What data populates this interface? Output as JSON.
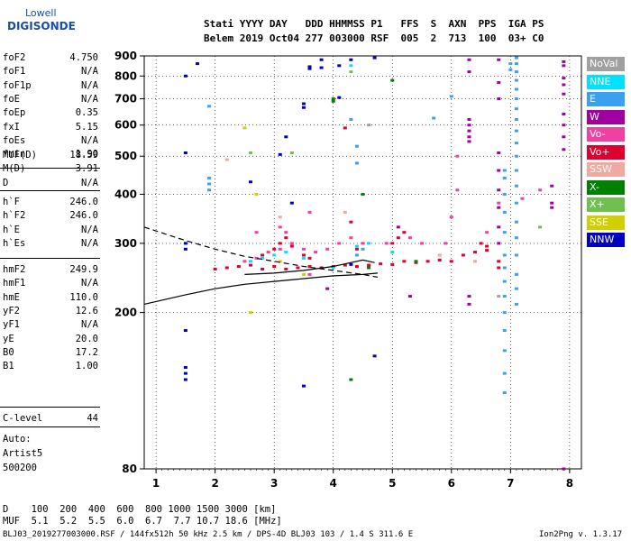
{
  "logo": {
    "top": "Lowell",
    "bottom": "DIGISONDE"
  },
  "header": {
    "line1": "Stati YYYY DAY   DDD HHMMSS P1   FFS  S  AXN  PPS  IGA PS",
    "line2": "Belem 2019 Oct04 277 003000 RSF  005  2  713  100  03+ C0"
  },
  "params_group1": [
    {
      "label": "foF2",
      "value": "4.750"
    },
    {
      "label": "foF1",
      "value": "N/A"
    },
    {
      "label": "foF1p",
      "value": "N/A"
    },
    {
      "label": "foE",
      "value": "N/A"
    },
    {
      "label": "foEp",
      "value": "0.35"
    },
    {
      "label": "fxI",
      "value": "5.15"
    },
    {
      "label": "foEs",
      "value": "N/A"
    },
    {
      "label": "fmin",
      "value": "1.90"
    }
  ],
  "params_group2": [
    {
      "label": "MUF(D)",
      "value": "18.59"
    },
    {
      "label": "M(D)",
      "value": "3.91"
    },
    {
      "label": "D",
      "value": "N/A"
    }
  ],
  "params_group3": [
    {
      "label": "h`F",
      "value": "246.0"
    },
    {
      "label": "h`F2",
      "value": "246.0"
    },
    {
      "label": "h`E",
      "value": "N/A"
    },
    {
      "label": "h`Es",
      "value": "N/A"
    }
  ],
  "params_group4": [
    {
      "label": "hmF2",
      "value": "249.9"
    },
    {
      "label": "hmF1",
      "value": "N/A"
    },
    {
      "label": "hmE",
      "value": "110.0"
    },
    {
      "label": "yF2",
      "value": "12.6"
    },
    {
      "label": "yF1",
      "value": "N/A"
    },
    {
      "label": "yE",
      "value": "20.0"
    },
    {
      "label": "B0",
      "value": "17.2"
    },
    {
      "label": "B1",
      "value": "1.00"
    }
  ],
  "clevel": {
    "label": "C-level",
    "value": "44"
  },
  "auto": [
    "Auto:",
    "Artist5",
    "500200"
  ],
  "footer": {
    "d_row": "D    100  200  400  600  800 1000 1500 3000 [km]",
    "muf_row": "MUF  5.1  5.2  5.5  6.0  6.7  7.7 10.7 18.6 [MHz]",
    "file_info": "BLJ03_2019277003000.RSF / 144fx512h 50 kHz 2.5 km / DPS-4D BLJ03 103 / 1.4 S 311.6 E",
    "version": "Ion2Png v. 1.3.17"
  },
  "legend": [
    {
      "label": "NoVal",
      "color": "#a0a0a0"
    },
    {
      "label": "NNE",
      "color": "#00e0ff"
    },
    {
      "label": "E",
      "color": "#3aa0f0"
    },
    {
      "label": "W",
      "color": "#a000a0"
    },
    {
      "label": "Vo-",
      "color": "#f040a0"
    },
    {
      "label": "Vo+",
      "color": "#e00030"
    },
    {
      "label": "SSW",
      "color": "#f0a8a0"
    },
    {
      "label": "X-",
      "color": "#008000"
    },
    {
      "label": "X+",
      "color": "#70c050"
    },
    {
      "label": "SSE",
      "color": "#d0d000"
    },
    {
      "label": "NNW",
      "color": "#0000c0"
    }
  ],
  "chart_data": {
    "type": "scatter",
    "title": "",
    "xlabel": "",
    "ylabel": "",
    "xlim": [
      0.8,
      8.2
    ],
    "ylim": [
      80,
      900
    ],
    "yscale": "log",
    "xticks": [
      1,
      2,
      3,
      4,
      5,
      6,
      7,
      8
    ],
    "yticks": [
      80,
      200,
      300,
      400,
      500,
      600,
      700,
      800,
      900
    ],
    "grid": true,
    "series": [
      {
        "name": "NNW",
        "color": "#0000c0",
        "points": [
          [
            1.7,
            860
          ],
          [
            1.5,
            800
          ],
          [
            1.5,
            510
          ],
          [
            1.5,
            300
          ],
          [
            1.5,
            290
          ],
          [
            1.5,
            180
          ],
          [
            1.5,
            145
          ],
          [
            1.5,
            140
          ],
          [
            1.5,
            135
          ],
          [
            2.6,
            430
          ],
          [
            3.1,
            505
          ],
          [
            3.2,
            560
          ],
          [
            3.3,
            380
          ],
          [
            3.5,
            680
          ],
          [
            3.5,
            665
          ],
          [
            3.6,
            845
          ],
          [
            3.6,
            835
          ],
          [
            3.5,
            130
          ],
          [
            3.8,
            880
          ],
          [
            3.8,
            840
          ],
          [
            4.1,
            705
          ],
          [
            4.1,
            850
          ],
          [
            4.3,
            880
          ],
          [
            4.7,
            890
          ],
          [
            4.7,
            155
          ],
          [
            4.3,
            265
          ]
        ]
      },
      {
        "name": "E",
        "color": "#3aa0f0",
        "points": [
          [
            6.9,
            460
          ],
          [
            6.9,
            440
          ],
          [
            6.9,
            400
          ],
          [
            6.9,
            360
          ],
          [
            6.9,
            320
          ],
          [
            6.9,
            280
          ],
          [
            6.9,
            260
          ],
          [
            6.9,
            240
          ],
          [
            6.9,
            220
          ],
          [
            6.9,
            200
          ],
          [
            6.9,
            180
          ],
          [
            6.9,
            160
          ],
          [
            6.9,
            140
          ],
          [
            6.9,
            125
          ],
          [
            7.1,
            890
          ],
          [
            7.1,
            860
          ],
          [
            7.1,
            820
          ],
          [
            7.1,
            780
          ],
          [
            7.1,
            740
          ],
          [
            7.1,
            700
          ],
          [
            7.1,
            660
          ],
          [
            7.1,
            620
          ],
          [
            7.1,
            580
          ],
          [
            7.1,
            540
          ],
          [
            7.1,
            500
          ],
          [
            7.1,
            460
          ],
          [
            7.1,
            420
          ],
          [
            7.1,
            380
          ],
          [
            7.1,
            340
          ],
          [
            7.1,
            310
          ],
          [
            7.1,
            280
          ],
          [
            7.1,
            250
          ],
          [
            7.1,
            230
          ],
          [
            7.1,
            210
          ],
          [
            7.0,
            860
          ],
          [
            7.0,
            830
          ],
          [
            6.0,
            710
          ],
          [
            5.7,
            625
          ],
          [
            4.3,
            620
          ],
          [
            1.9,
            670
          ],
          [
            1.9,
            440
          ],
          [
            1.9,
            425
          ],
          [
            1.9,
            410
          ],
          [
            4.4,
            480
          ],
          [
            4.4,
            530
          ],
          [
            4.4,
            280
          ],
          [
            4.5,
            290
          ]
        ]
      },
      {
        "name": "W",
        "color": "#a000a0",
        "points": [
          [
            6.3,
            880
          ],
          [
            6.3,
            820
          ],
          [
            6.3,
            620
          ],
          [
            6.3,
            600
          ],
          [
            6.3,
            580
          ],
          [
            6.3,
            560
          ],
          [
            6.3,
            545
          ],
          [
            6.3,
            220
          ],
          [
            6.3,
            210
          ],
          [
            6.8,
            880
          ],
          [
            6.8,
            770
          ],
          [
            6.8,
            700
          ],
          [
            6.8,
            510
          ],
          [
            6.8,
            460
          ],
          [
            6.8,
            410
          ],
          [
            6.8,
            370
          ],
          [
            6.8,
            330
          ],
          [
            6.8,
            300
          ],
          [
            7.9,
            870
          ],
          [
            7.9,
            850
          ],
          [
            7.9,
            790
          ],
          [
            7.9,
            760
          ],
          [
            7.9,
            720
          ],
          [
            7.9,
            640
          ],
          [
            7.9,
            600
          ],
          [
            7.9,
            560
          ],
          [
            7.9,
            520
          ],
          [
            7.9,
            80
          ],
          [
            7.7,
            380
          ],
          [
            7.7,
            370
          ],
          [
            7.7,
            420
          ],
          [
            5.1,
            330
          ],
          [
            5.3,
            220
          ],
          [
            3.9,
            230
          ]
        ]
      },
      {
        "name": "Vo+",
        "color": "#e00030",
        "points": [
          [
            2.0,
            258
          ],
          [
            2.2,
            260
          ],
          [
            2.4,
            262
          ],
          [
            2.6,
            264
          ],
          [
            2.8,
            258
          ],
          [
            3.0,
            262
          ],
          [
            3.2,
            258
          ],
          [
            3.4,
            260
          ],
          [
            3.6,
            262
          ],
          [
            3.8,
            260
          ],
          [
            4.0,
            262
          ],
          [
            4.2,
            264
          ],
          [
            4.4,
            262
          ],
          [
            4.6,
            264
          ],
          [
            4.8,
            266
          ],
          [
            5.0,
            265
          ],
          [
            5.2,
            270
          ],
          [
            5.4,
            268
          ],
          [
            5.6,
            270
          ],
          [
            5.8,
            272
          ],
          [
            6.0,
            270
          ],
          [
            6.2,
            280
          ],
          [
            6.4,
            285
          ],
          [
            6.6,
            288
          ],
          [
            3.0,
            290
          ],
          [
            3.1,
            300
          ],
          [
            3.2,
            310
          ],
          [
            3.3,
            295
          ],
          [
            4.3,
            340
          ],
          [
            4.4,
            290
          ],
          [
            5.0,
            300
          ],
          [
            5.1,
            310
          ],
          [
            5.2,
            320
          ],
          [
            6.5,
            300
          ],
          [
            6.6,
            295
          ],
          [
            4.2,
            590
          ],
          [
            6.8,
            270
          ],
          [
            6.8,
            260
          ],
          [
            3.6,
            275
          ],
          [
            3.5,
            280
          ],
          [
            2.8,
            280
          ]
        ]
      },
      {
        "name": "Vo-",
        "color": "#f040a0",
        "points": [
          [
            2.5,
            270
          ],
          [
            2.7,
            275
          ],
          [
            2.9,
            285
          ],
          [
            3.1,
            290
          ],
          [
            3.3,
            300
          ],
          [
            3.5,
            290
          ],
          [
            3.7,
            285
          ],
          [
            3.9,
            290
          ],
          [
            4.1,
            300
          ],
          [
            4.3,
            310
          ],
          [
            4.5,
            300
          ],
          [
            4.9,
            300
          ],
          [
            5.3,
            310
          ],
          [
            5.5,
            300
          ],
          [
            5.9,
            300
          ],
          [
            6.1,
            410
          ],
          [
            6.1,
            500
          ],
          [
            6.6,
            320
          ],
          [
            6.8,
            380
          ],
          [
            7.2,
            390
          ],
          [
            7.5,
            410
          ],
          [
            3.1,
            330
          ],
          [
            3.2,
            320
          ],
          [
            6.0,
            350
          ],
          [
            3.6,
            360
          ],
          [
            3.6,
            250
          ],
          [
            2.7,
            320
          ]
        ]
      },
      {
        "name": "X-",
        "color": "#008000",
        "points": [
          [
            4.0,
            700
          ],
          [
            4.0,
            690
          ],
          [
            4.3,
            135
          ],
          [
            4.6,
            260
          ],
          [
            5.0,
            780
          ],
          [
            5.4,
            270
          ],
          [
            4.5,
            400
          ]
        ]
      },
      {
        "name": "X+",
        "color": "#70c050",
        "points": [
          [
            4.3,
            820
          ],
          [
            2.6,
            510
          ],
          [
            3.3,
            510
          ],
          [
            7.5,
            330
          ]
        ]
      },
      {
        "name": "SSE",
        "color": "#d0d000",
        "points": [
          [
            2.5,
            590
          ],
          [
            2.6,
            200
          ],
          [
            3.1,
            270
          ],
          [
            2.7,
            400
          ],
          [
            3.5,
            250
          ]
        ]
      },
      {
        "name": "NNE",
        "color": "#00e0ff",
        "points": [
          [
            2.6,
            270
          ],
          [
            2.8,
            275
          ],
          [
            3.0,
            280
          ],
          [
            3.2,
            285
          ],
          [
            3.5,
            275
          ],
          [
            4.0,
            260
          ],
          [
            4.4,
            295
          ],
          [
            4.6,
            300
          ],
          [
            5.0,
            285
          ],
          [
            4.3,
            850
          ]
        ]
      },
      {
        "name": "SSW",
        "color": "#f0a8a0",
        "points": [
          [
            2.2,
            490
          ],
          [
            3.1,
            350
          ],
          [
            4.2,
            360
          ],
          [
            5.8,
            280
          ],
          [
            6.4,
            270
          ]
        ]
      },
      {
        "name": "NoVal",
        "color": "#a0a0a0",
        "points": [
          [
            4.6,
            600
          ],
          [
            6.8,
            220
          ]
        ]
      }
    ],
    "curves": [
      {
        "style": "dashed",
        "points": [
          [
            0.8,
            330
          ],
          [
            1.5,
            305
          ],
          [
            2.0,
            290
          ],
          [
            2.5,
            278
          ],
          [
            3.0,
            270
          ],
          [
            3.5,
            262
          ],
          [
            4.0,
            256
          ],
          [
            4.5,
            250
          ],
          [
            4.75,
            246
          ]
        ]
      },
      {
        "style": "solid",
        "points": [
          [
            0.8,
            210
          ],
          [
            1.5,
            222
          ],
          [
            2.0,
            230
          ],
          [
            2.5,
            236
          ],
          [
            3.0,
            240
          ],
          [
            3.5,
            244
          ],
          [
            4.0,
            248
          ],
          [
            4.5,
            250
          ],
          [
            4.75,
            252
          ]
        ]
      },
      {
        "style": "solid",
        "points": [
          [
            2.5,
            250
          ],
          [
            3.0,
            252
          ],
          [
            3.5,
            256
          ],
          [
            4.0,
            262
          ],
          [
            4.3,
            268
          ],
          [
            4.5,
            272
          ],
          [
            4.7,
            268
          ]
        ]
      }
    ]
  }
}
